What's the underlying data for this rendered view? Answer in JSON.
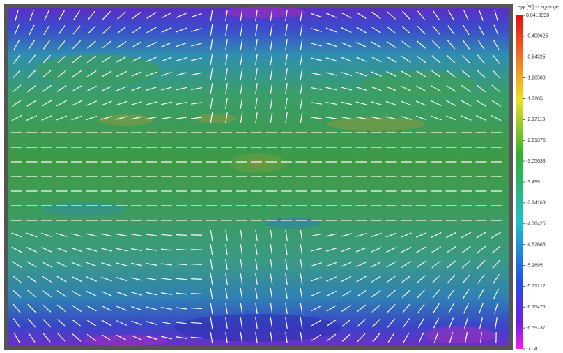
{
  "colorbar": {
    "title": "eyy [%] - Lagrange",
    "ticks": [
      0.0419998,
      -0.400625,
      -0.84325,
      -1.28588,
      -1.7285,
      -2.17113,
      -2.61375,
      -3.05638,
      -3.499,
      -3.94163,
      -4.38425,
      -4.82688,
      -5.2695,
      -5.71212,
      -6.15475,
      -6.59737,
      -7.04
    ]
  }
}
